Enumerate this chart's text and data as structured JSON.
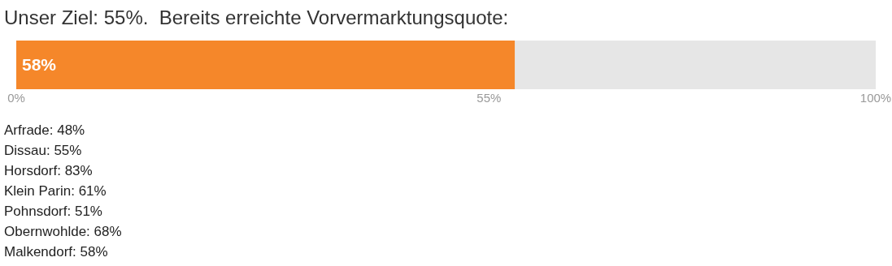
{
  "chart_data": {
    "type": "bar",
    "orientation": "horizontal",
    "title": "Unser Ziel: 55%.  Bereits erreichte Vorvermarktungsquote:",
    "categories": [
      null
    ],
    "series": [
      {
        "color": "#f5872a",
        "values": [
          58
        ],
        "value_labels": [
          "58%"
        ]
      }
    ],
    "xlim": [
      0,
      100
    ],
    "xticks": [
      {
        "value": 0,
        "label": "0%"
      },
      {
        "value": 55,
        "label": "55%"
      },
      {
        "value": 100,
        "label": "100%"
      }
    ],
    "annotations": [
      "Arfrade: 48%",
      "Dissau: 55%",
      "Horsdorf: 83%",
      "Klein Parin: 61%",
      "Pohnsdorf: 51%",
      "Obernwohlde: 68%",
      "Malkendorf: 58%"
    ]
  }
}
